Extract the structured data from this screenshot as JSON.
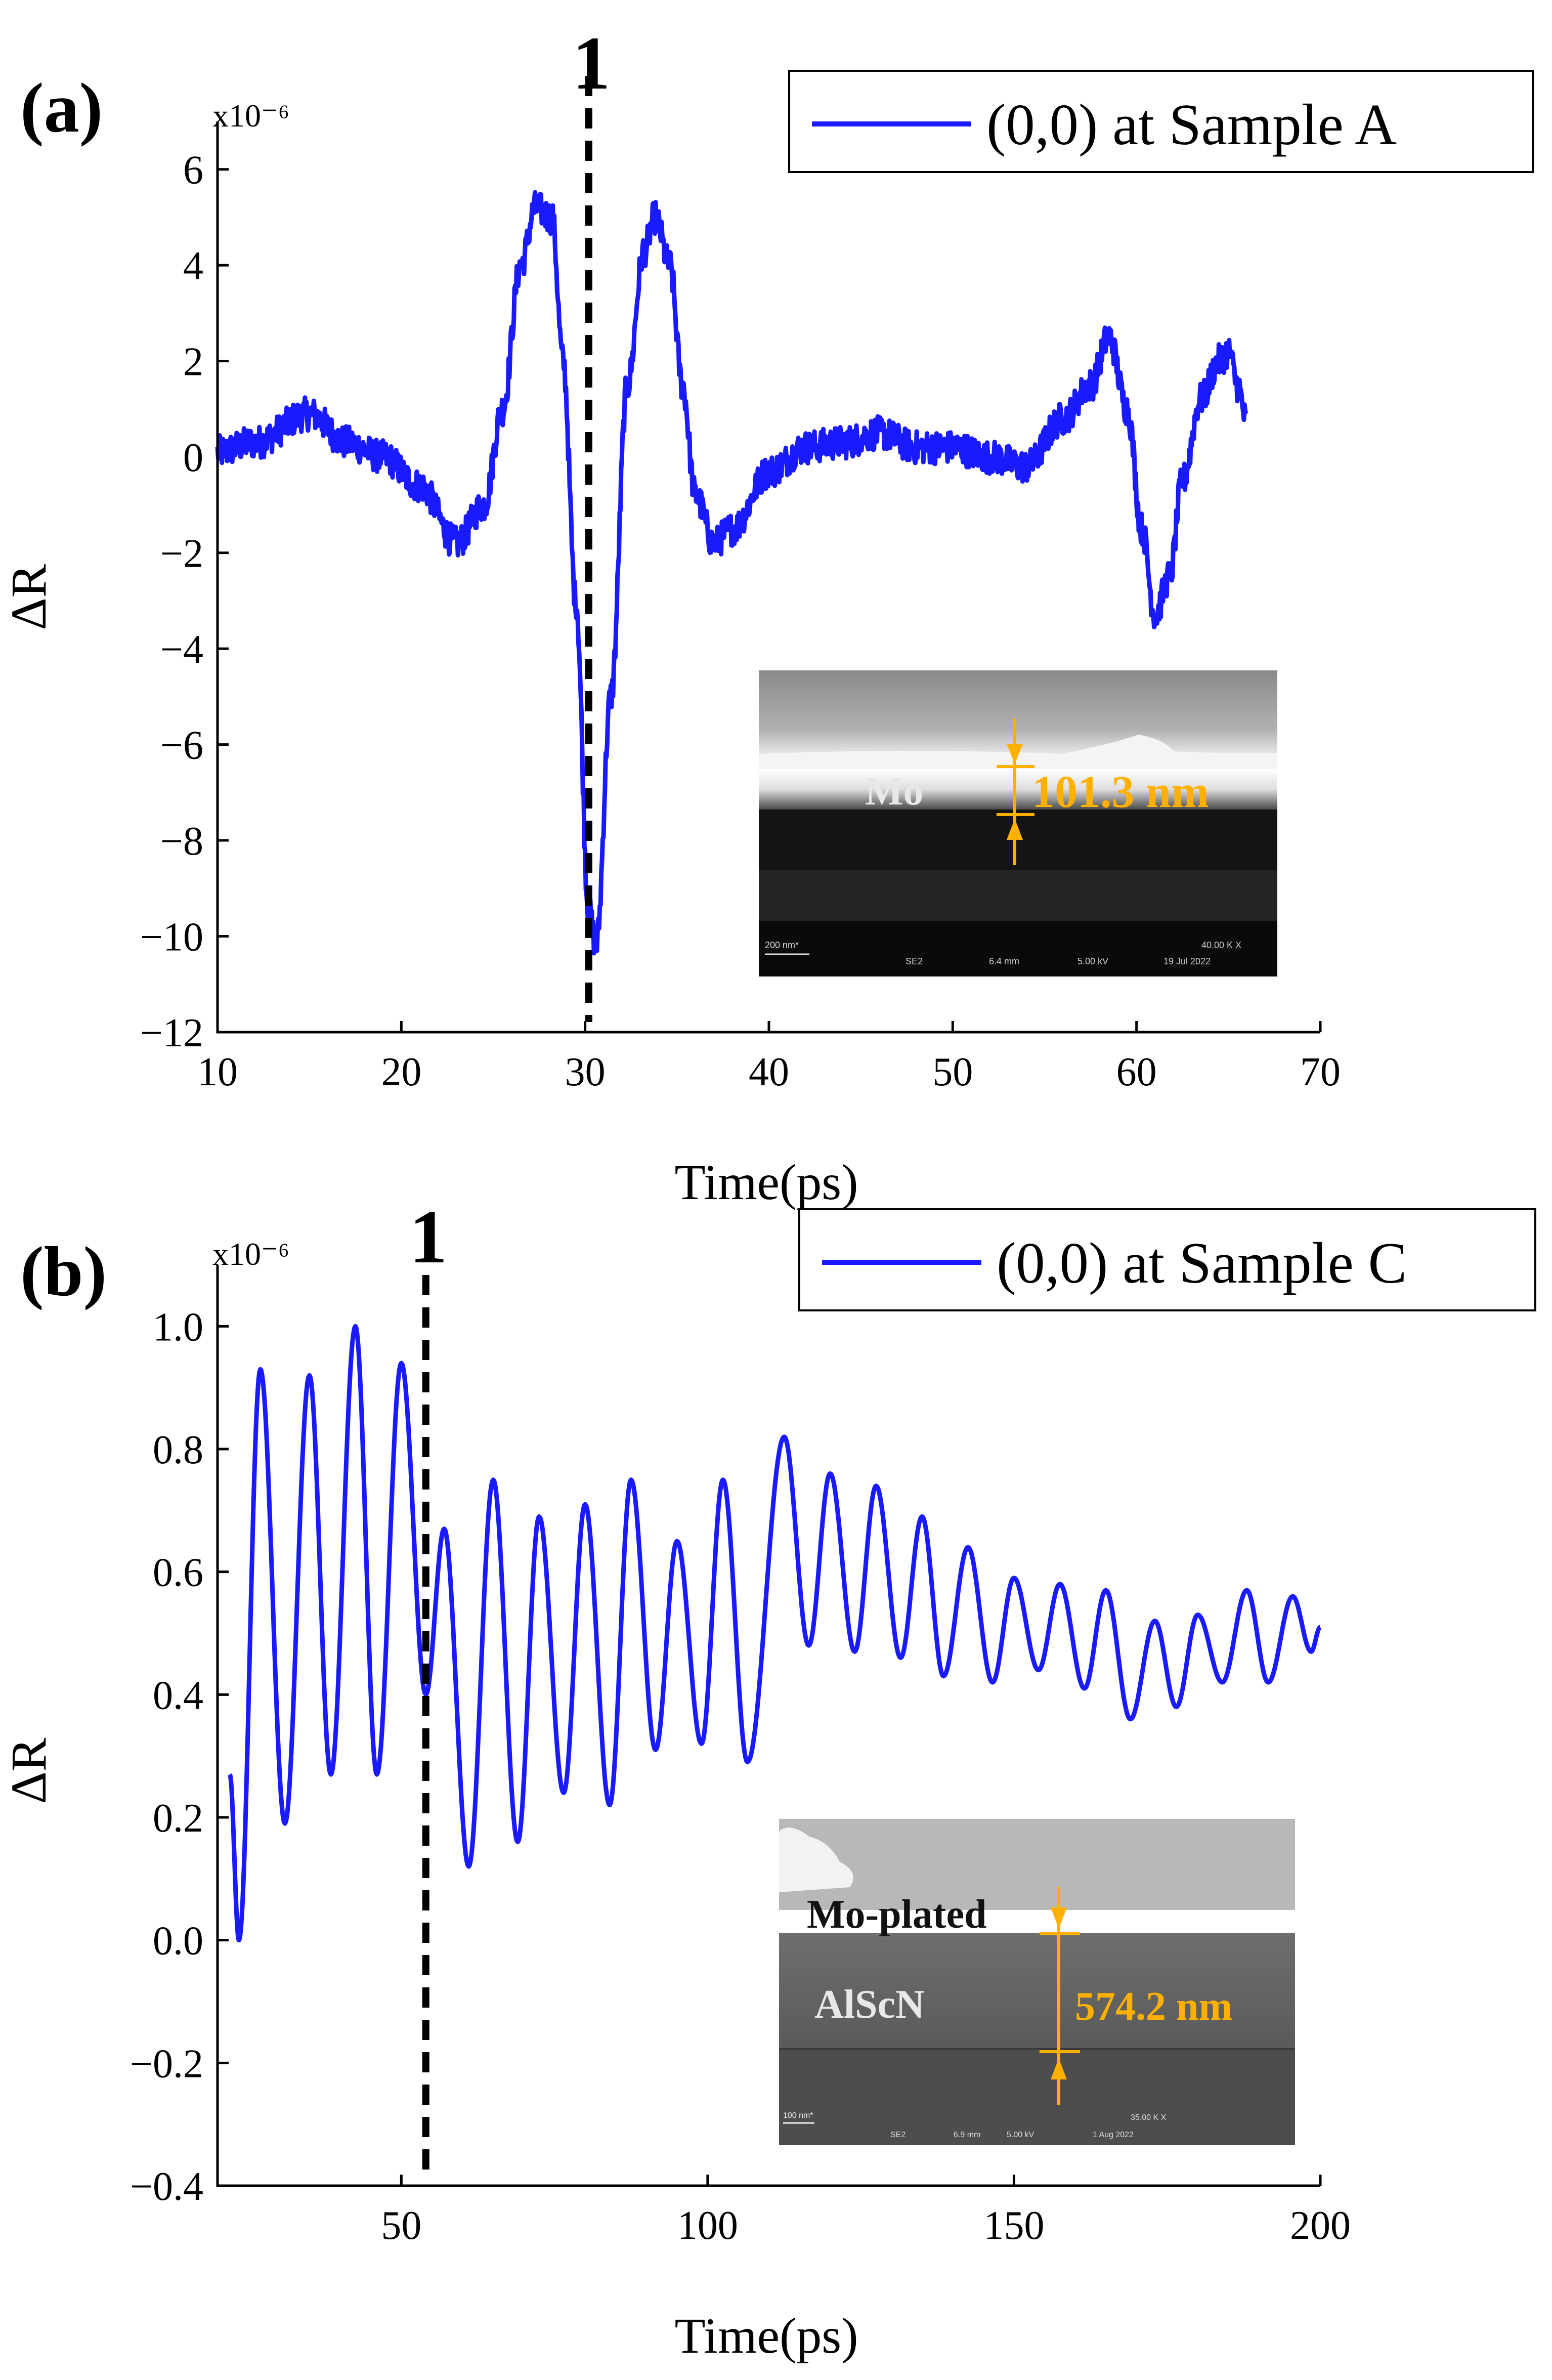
{
  "line_color": "#1a1aff",
  "inset_accent": "#ffb000",
  "chart_data": [
    {
      "type": "line",
      "panel_label": "(a)",
      "title": "",
      "xlabel": "Time(ps)",
      "ylabel": "ΔR",
      "y_multiplier": "x10⁻⁶",
      "xlim": [
        10,
        70
      ],
      "ylim": [
        -12,
        7
      ],
      "xticks": [
        10,
        20,
        30,
        40,
        50,
        60,
        70
      ],
      "yticks": [
        -12,
        -10,
        -8,
        -6,
        -4,
        -2,
        0,
        2,
        4,
        6
      ],
      "grid": false,
      "legend": "top-right",
      "series": [
        {
          "name": "(0,0) at Sample A",
          "color": "#1a1aff",
          "noise_amplitude": 0.35,
          "x": [
            10,
            12,
            15,
            17,
            19,
            21,
            23,
            24.5,
            25.5,
            26.5,
            27.3,
            28.2,
            28.8,
            29.5,
            30.2,
            30.6,
            31.4,
            32.3,
            33.2,
            33.8,
            34.6,
            35.3,
            36.0,
            37.0,
            38.0,
            40,
            42,
            44,
            46,
            48,
            50,
            52,
            54,
            56,
            57.5,
            58.5,
            59.5,
            60.3,
            61.0,
            61.8,
            62.5,
            63.5,
            64.5,
            65.0,
            65.5,
            66.0
          ],
          "y": [
            0.1,
            0.3,
            0.9,
            0.3,
            0.0,
            -0.6,
            -1.8,
            -1.0,
            1.0,
            4.0,
            5.2,
            5.0,
            2.0,
            -3.0,
            -9.5,
            -10.2,
            -5.0,
            1.5,
            4.3,
            5.0,
            4.0,
            1.5,
            -0.8,
            -1.8,
            -1.5,
            -0.3,
            0.2,
            0.3,
            0.5,
            0.2,
            0.2,
            0.0,
            -0.2,
            0.8,
            1.5,
            2.5,
            1.0,
            -1.5,
            -3.3,
            -2.5,
            -0.5,
            1.2,
            2.0,
            2.2,
            1.5,
            0.7
          ]
        }
      ],
      "annotations": [
        {
          "label": "1",
          "x": 30.2,
          "style": "dashed-vertical"
        }
      ],
      "inset": {
        "material_label": "Mo",
        "thickness_label": "101.3 nm",
        "scalebar_label": "200 nm*",
        "meta": [
          "SE2",
          "6.4 mm",
          "5.00 kV",
          "19 Jul 2022",
          "40.00 K X"
        ]
      }
    },
    {
      "type": "line",
      "panel_label": "(b)",
      "title": "",
      "xlabel": "Time(ps)",
      "ylabel": "ΔR",
      "y_multiplier": "x10⁻⁶",
      "xlim": [
        20,
        200
      ],
      "ylim": [
        -0.4,
        1.1
      ],
      "xticks": [
        50,
        100,
        150,
        200
      ],
      "yticks": [
        -0.4,
        -0.2,
        0.0,
        0.2,
        0.4,
        0.6,
        0.8,
        1.0
      ],
      "ytick_labels": [
        "−0.4",
        "−0.2",
        "0.0",
        "0.2",
        "0.4",
        "0.6",
        "0.8",
        "1.0"
      ],
      "grid": false,
      "legend": "top-right",
      "series": [
        {
          "name": "(0,0) at Sample C",
          "color": "#1a1aff",
          "start_x": 22,
          "start_y": 0.27,
          "extrema": [
            [
              23.5,
              0.0
            ],
            [
              27,
              0.93
            ],
            [
              31,
              0.19
            ],
            [
              35,
              0.92
            ],
            [
              38.5,
              0.27
            ],
            [
              42.5,
              1.0
            ],
            [
              46,
              0.27
            ],
            [
              50,
              0.94
            ],
            [
              54,
              0.4
            ],
            [
              57,
              0.67
            ],
            [
              61,
              0.12
            ],
            [
              65,
              0.75
            ],
            [
              69,
              0.16
            ],
            [
              72.5,
              0.69
            ],
            [
              76.5,
              0.24
            ],
            [
              80,
              0.71
            ],
            [
              84,
              0.22
            ],
            [
              87.5,
              0.75
            ],
            [
              91.5,
              0.31
            ],
            [
              95,
              0.65
            ],
            [
              99,
              0.32
            ],
            [
              102.5,
              0.75
            ],
            [
              106.5,
              0.29
            ],
            [
              112.5,
              0.82
            ],
            [
              116.5,
              0.48
            ],
            [
              120,
              0.76
            ],
            [
              124,
              0.47
            ],
            [
              127.5,
              0.74
            ],
            [
              131.5,
              0.46
            ],
            [
              135,
              0.69
            ],
            [
              138.5,
              0.43
            ],
            [
              142.5,
              0.64
            ],
            [
              146.5,
              0.42
            ],
            [
              150,
              0.59
            ],
            [
              154,
              0.44
            ],
            [
              157.5,
              0.58
            ],
            [
              161.5,
              0.41
            ],
            [
              165,
              0.57
            ],
            [
              169,
              0.36
            ],
            [
              173,
              0.52
            ],
            [
              176.5,
              0.38
            ],
            [
              180,
              0.53
            ],
            [
              184,
              0.42
            ],
            [
              188,
              0.57
            ],
            [
              191.5,
              0.42
            ],
            [
              195.5,
              0.56
            ],
            [
              198.5,
              0.47
            ],
            [
              200,
              0.51
            ]
          ]
        }
      ],
      "annotations": [
        {
          "label": "1",
          "x": 54,
          "style": "dashed-vertical"
        }
      ],
      "inset": {
        "top_label": "Mo-plated",
        "material_label": "AlScN",
        "thickness_label": "574.2 nm",
        "scalebar_label": "100 nm*",
        "meta": [
          "SE2",
          "6.9 mm",
          "5.00 kV",
          "1 Aug 2022",
          "35.00 K X"
        ]
      }
    }
  ]
}
